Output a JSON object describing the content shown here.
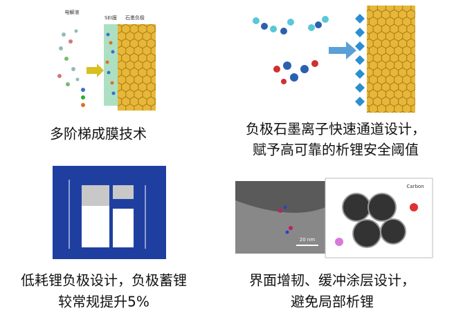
{
  "panels": [
    {
      "caption": [
        "多阶梯成膜技术"
      ],
      "labels": [
        "电解液",
        "SEI膜",
        "石墨负极"
      ]
    },
    {
      "caption": [
        "负极石墨离子快速通道设计，",
        "赋予高可靠的析锂安全阈值"
      ]
    },
    {
      "caption": [
        "低耗锂负极设计，负极蓄锂",
        "较常规提升5%"
      ]
    },
    {
      "caption": [
        "界面增韧、缓冲涂层设计，",
        "避免局部析锂"
      ],
      "labels": [
        "20 nm",
        "Carbon"
      ]
    }
  ]
}
